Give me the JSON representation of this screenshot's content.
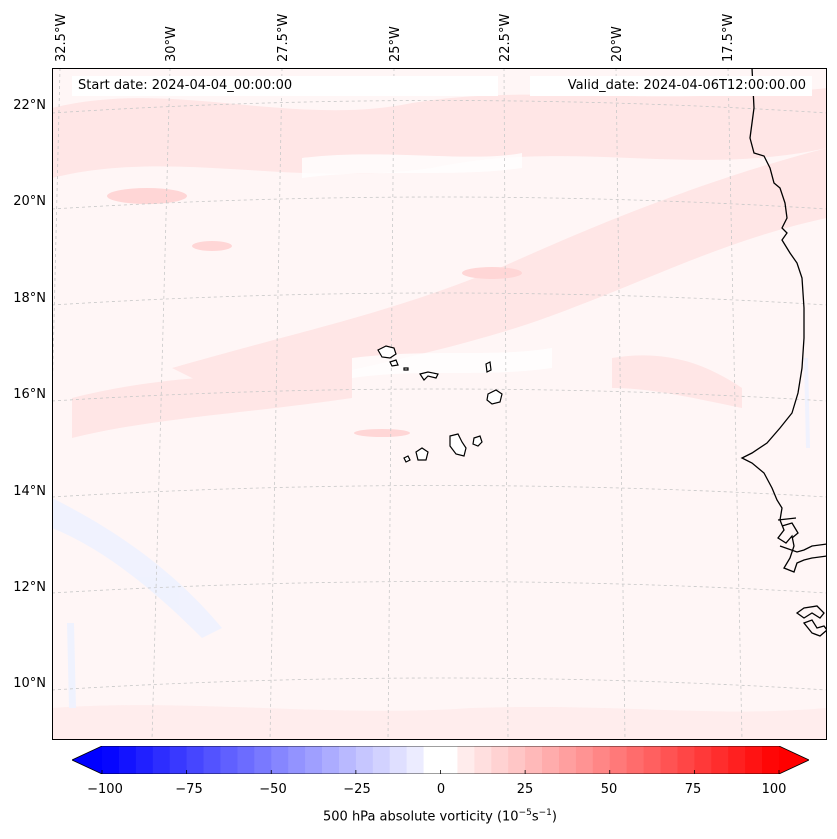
{
  "map": {
    "start_date": "Start date: 2024-04-04_00:00:00",
    "valid_date": "Valid_date: 2024-04-06T12:00:00.00",
    "longitude_labels": [
      "32.5°W",
      "30°W",
      "27.5°W",
      "25°W",
      "22.5°W",
      "20°W",
      "17.5°W"
    ],
    "latitude_labels": [
      "22°N",
      "20°N",
      "18°N",
      "16°N",
      "14°N",
      "12°N",
      "10°N"
    ],
    "field": "500 hPa absolute vorticity",
    "colors": {
      "coastline": "#000000",
      "gridline": "#c8c8c8",
      "positive": "#ff0000",
      "negative": "#0000ff",
      "zero": "#ffffff"
    }
  },
  "colorbar": {
    "min": -100,
    "max": 100,
    "ticks": [
      "−100",
      "−75",
      "−50",
      "−25",
      "0",
      "25",
      "50",
      "75",
      "100"
    ],
    "label": "500 hPa absolute vorticity (10",
    "label_exp1": "−5",
    "label_mid": "s",
    "label_exp2": "−1",
    "label_end": ")"
  }
}
